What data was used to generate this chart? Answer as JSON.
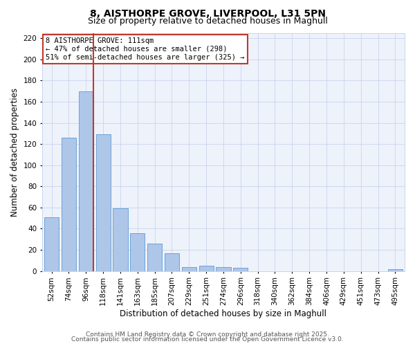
{
  "title": "8, AISTHORPE GROVE, LIVERPOOL, L31 5PN",
  "subtitle": "Size of property relative to detached houses in Maghull",
  "xlabel": "Distribution of detached houses by size in Maghull",
  "ylabel": "Number of detached properties",
  "bar_labels": [
    "52sqm",
    "74sqm",
    "96sqm",
    "118sqm",
    "141sqm",
    "163sqm",
    "185sqm",
    "207sqm",
    "229sqm",
    "251sqm",
    "274sqm",
    "296sqm",
    "318sqm",
    "340sqm",
    "362sqm",
    "384sqm",
    "406sqm",
    "429sqm",
    "451sqm",
    "473sqm",
    "495sqm"
  ],
  "bar_heights": [
    51,
    126,
    170,
    129,
    59,
    36,
    26,
    17,
    4,
    5,
    4,
    3,
    0,
    0,
    0,
    0,
    0,
    0,
    0,
    0,
    2
  ],
  "bar_color": "#aec6e8",
  "bar_edge_color": "#5b9bd5",
  "vline_color": "#c0392b",
  "ylim": [
    0,
    225
  ],
  "yticks": [
    0,
    20,
    40,
    60,
    80,
    100,
    120,
    140,
    160,
    180,
    200,
    220
  ],
  "annotation_box_text": "8 AISTHORPE GROVE: 111sqm\n← 47% of detached houses are smaller (298)\n51% of semi-detached houses are larger (325) →",
  "footer_line1": "Contains HM Land Registry data © Crown copyright and database right 2025.",
  "footer_line2": "Contains public sector information licensed under the Open Government Licence v3.0.",
  "bg_color": "#eef2fa",
  "grid_color": "#c8d4ee",
  "title_fontsize": 10,
  "subtitle_fontsize": 9,
  "axis_label_fontsize": 8.5,
  "tick_fontsize": 7.5,
  "footer_fontsize": 6.5
}
